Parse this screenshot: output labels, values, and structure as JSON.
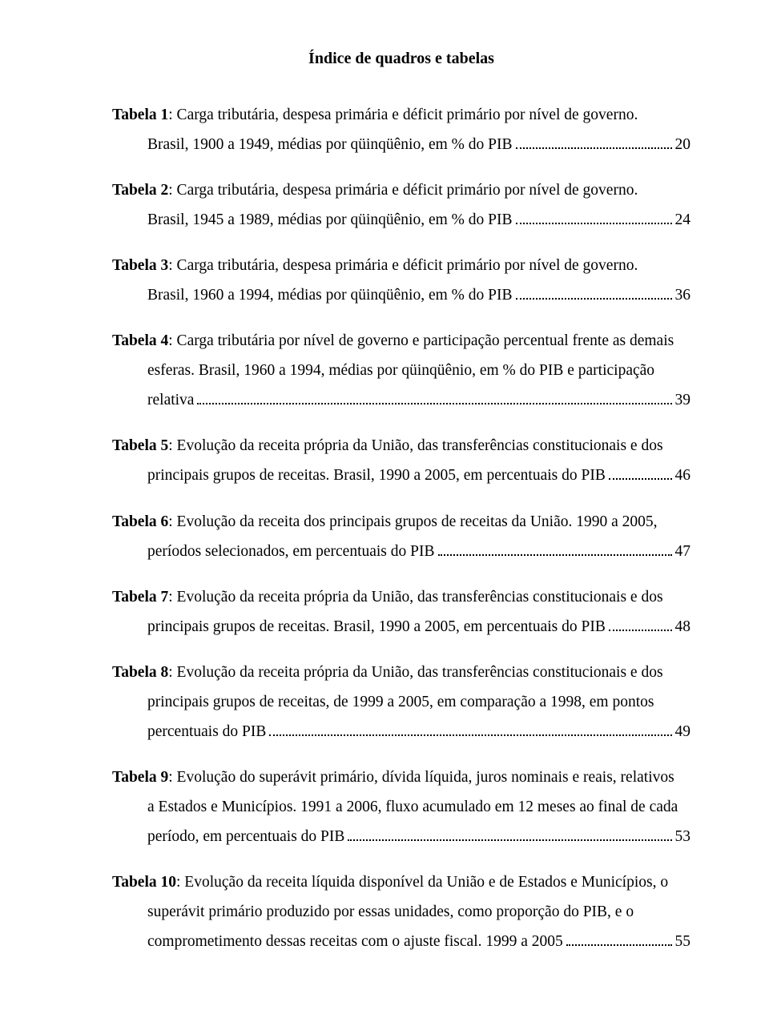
{
  "title": "Índice de quadros e tabelas",
  "entries": [
    {
      "label": "Tabela 1",
      "line1": ": Carga tributária, despesa primária e déficit primário por nível de governo.",
      "tail_text": "Brasil, 1900 a 1949, médias por qüinqüênio, em % do PIB",
      "page": "20"
    },
    {
      "label": "Tabela 2",
      "line1": ": Carga tributária, despesa primária e déficit primário por nível de governo.",
      "tail_text": "Brasil, 1945 a 1989, médias por qüinqüênio, em % do PIB",
      "page": "24"
    },
    {
      "label": "Tabela 3",
      "line1": ": Carga tributária, despesa primária e déficit primário por nível de governo.",
      "tail_text": "Brasil, 1960 a 1994, médias por qüinqüênio, em % do PIB",
      "page": "36"
    },
    {
      "label": "Tabela 4",
      "line1": ": Carga tributária por nível de governo e participação percentual frente as demais",
      "cont1": "esferas. Brasil, 1960 a 1994, médias por qüinqüênio, em % do PIB e participação",
      "tail_text": "relativa",
      "page": "39"
    },
    {
      "label": "Tabela 5",
      "line1": ": Evolução da receita própria da União, das transferências constitucionais e dos",
      "tail_text": "principais grupos de receitas. Brasil, 1990 a 2005, em percentuais do PIB",
      "page": "46"
    },
    {
      "label": "Tabela 6",
      "line1": ": Evolução da receita dos principais grupos de receitas da União. 1990 a 2005,",
      "tail_text": "períodos selecionados, em percentuais do PIB",
      "page": "47"
    },
    {
      "label": "Tabela 7",
      "line1": ": Evolução da receita própria da União, das transferências constitucionais e dos",
      "tail_text": "principais grupos de receitas. Brasil, 1990 a 2005, em percentuais do PIB",
      "page": "48"
    },
    {
      "label": "Tabela 8",
      "line1": ": Evolução da receita própria da União, das transferências constitucionais e dos",
      "cont1": "principais grupos de receitas, de 1999 a 2005, em comparação a 1998, em pontos",
      "tail_text": "percentuais do PIB",
      "page": "49"
    },
    {
      "label": "Tabela 9",
      "line1": ": Evolução do superávit primário, dívida líquida, juros nominais e reais, relativos",
      "cont1": "a Estados e Municípios. 1991 a 2006, fluxo acumulado em 12 meses ao final de cada",
      "tail_text": "período, em percentuais do PIB",
      "page": "53"
    },
    {
      "label": "Tabela 10",
      "line1": ": Evolução da receita líquida disponível da União e de Estados e Municípios, o",
      "cont1": "superávit primário produzido por essas unidades, como proporção do PIB, e o",
      "tail_text": "comprometimento dessas receitas com o ajuste fiscal. 1999 a 2005",
      "page": "55"
    }
  ]
}
